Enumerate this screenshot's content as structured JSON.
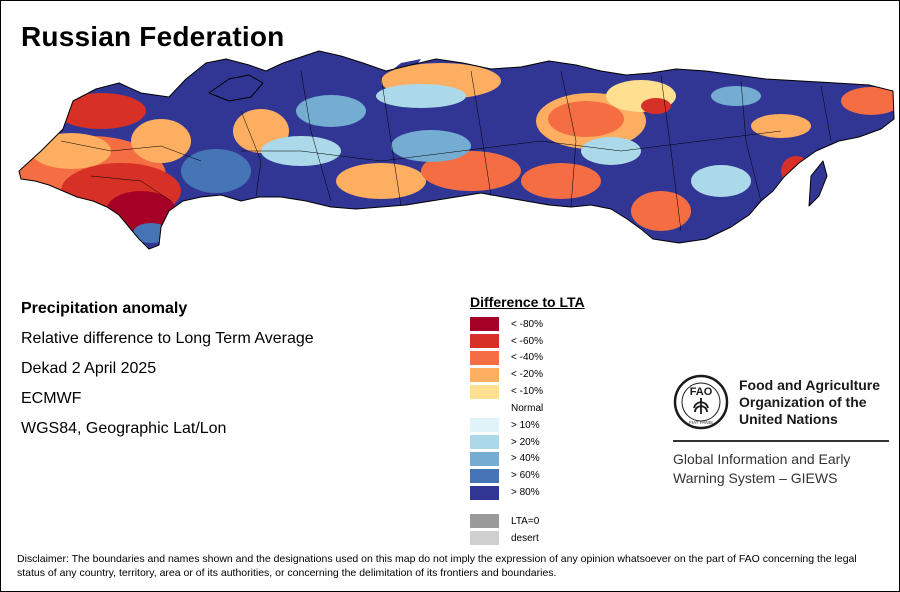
{
  "map": {
    "title": "Russian Federation",
    "description_lines": [
      "Precipitation anomaly",
      "Relative difference to Long Term Average",
      "Dekad 2 April 2025",
      "ECMWF",
      "WGS84, Geographic Lat/Lon"
    ]
  },
  "legend": {
    "title": "Difference to LTA",
    "dry": [
      {
        "label": "< -80%",
        "color": "#a50026"
      },
      {
        "label": "< -60%",
        "color": "#d73027"
      },
      {
        "label": "< -40%",
        "color": "#f46d43"
      },
      {
        "label": "< -20%",
        "color": "#fdae61"
      },
      {
        "label": "< -10%",
        "color": "#fee090"
      }
    ],
    "normal_label": "Normal",
    "wet": [
      {
        "label": "> 10%",
        "color": "#e0f3f8"
      },
      {
        "label": "> 20%",
        "color": "#abd9e9"
      },
      {
        "label": "> 40%",
        "color": "#74add1"
      },
      {
        "label": "> 60%",
        "color": "#4575b4"
      },
      {
        "label": "> 80%",
        "color": "#313695"
      }
    ],
    "other": [
      {
        "label": "LTA=0",
        "color": "#9a9a9a"
      },
      {
        "label": "desert",
        "color": "#cfcfcf"
      }
    ]
  },
  "fao": {
    "emblem_letters": "FAO",
    "emblem_motto": "FIAT PANIS",
    "org_lines": [
      "Food and Agriculture",
      "Organization of the",
      "United Nations"
    ],
    "giews_lines": [
      "Global Information and Early",
      "Warning System – GIEWS"
    ]
  },
  "disclaimer": "Disclaimer: The boundaries and names shown and the designations used on this map do not imply the expression of any opinion whatsoever on the part of FAO concerning the legal status of any country, territory, area or of its authorities, or concerning the delimitation of its frontiers and boundaries."
}
